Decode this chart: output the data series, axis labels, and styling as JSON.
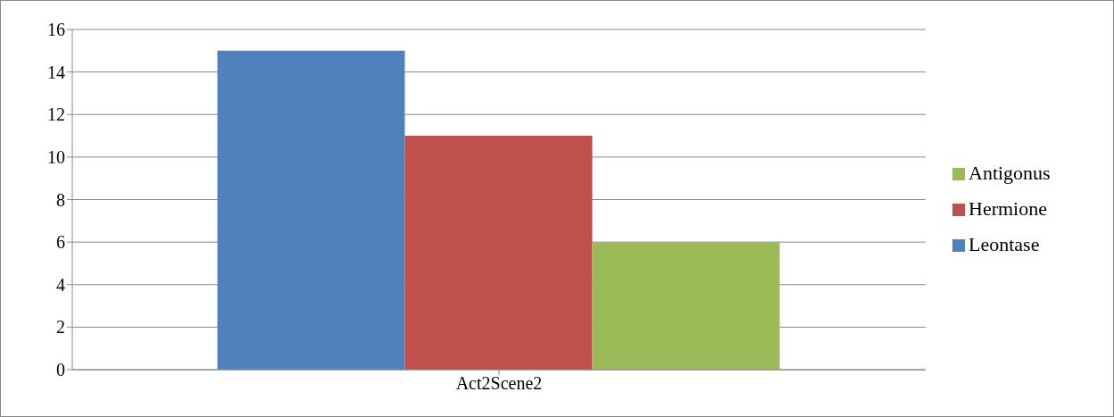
{
  "chart_data": {
    "type": "bar",
    "categories": [
      "Act2Scene2"
    ],
    "series": [
      {
        "name": "Leontase",
        "color": "#4f81bd",
        "values": [
          15
        ]
      },
      {
        "name": "Hermione",
        "color": "#c0504d",
        "values": [
          11
        ]
      },
      {
        "name": "Antigonus",
        "color": "#9bbb59",
        "values": [
          6
        ]
      }
    ],
    "ylim": [
      0,
      16
    ],
    "yticks": [
      0,
      2,
      4,
      6,
      8,
      10,
      12,
      14,
      16
    ],
    "grid": "y",
    "legend": "right"
  }
}
